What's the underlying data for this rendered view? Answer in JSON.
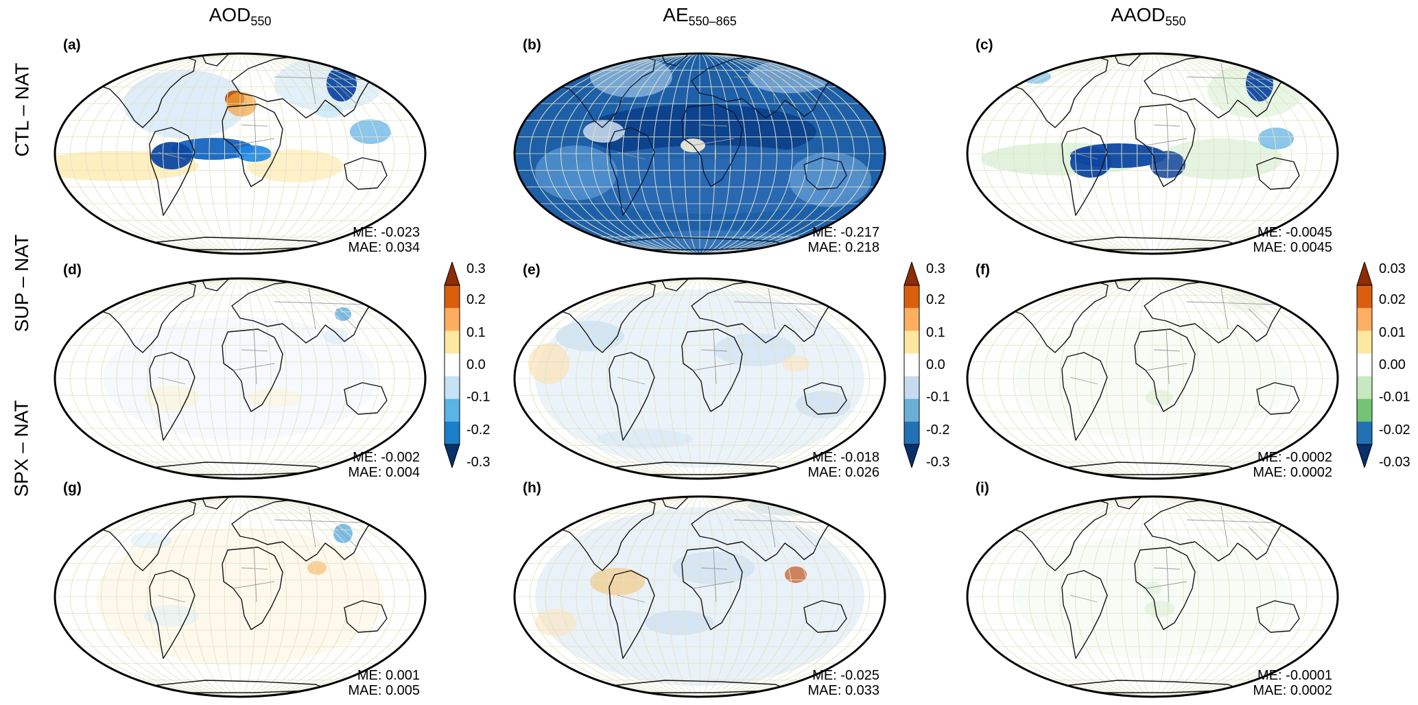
{
  "columns": [
    {
      "main": "AOD",
      "sub": "550"
    },
    {
      "main": "AE",
      "sub": "550–865"
    },
    {
      "main": "AAOD",
      "sub": "550"
    }
  ],
  "rows": [
    "CTL – NAT",
    "SUP – NAT",
    "SPX – NAT"
  ],
  "panels": [
    {
      "label": "(a)",
      "me": "ME: -0.023",
      "mae": "MAE: 0.034"
    },
    {
      "label": "(b)",
      "me": "ME: -0.217",
      "mae": "MAE: 0.218"
    },
    {
      "label": "(c)",
      "me": "ME: -0.0045",
      "mae": "MAE: 0.0045"
    },
    {
      "label": "(d)",
      "me": "ME: -0.002",
      "mae": "MAE: 0.004"
    },
    {
      "label": "(e)",
      "me": "ME: -0.018",
      "mae": "MAE: 0.026"
    },
    {
      "label": "(f)",
      "me": "ME: -0.0002",
      "mae": "MAE: 0.0002"
    },
    {
      "label": "(g)",
      "me": "ME: 0.001",
      "mae": "MAE: 0.005"
    },
    {
      "label": "(h)",
      "me": "ME: -0.025",
      "mae": "MAE: 0.033"
    },
    {
      "label": "(i)",
      "me": "ME: -0.0001",
      "mae": "MAE: 0.0002"
    }
  ],
  "colorbars": [
    {
      "ticks": [
        "0.3",
        "0.2",
        "0.1",
        "0.0",
        "-0.1",
        "-0.2",
        "-0.3"
      ],
      "colors": [
        "#8c2d04",
        "#d95f0e",
        "#fdae61",
        "#fee8a0",
        "#ffffff",
        "#c6e2f5",
        "#5ab4e5",
        "#1a7fc9",
        "#08306b"
      ]
    },
    {
      "ticks": [
        "0.3",
        "0.2",
        "0.1",
        "0.0",
        "-0.1",
        "-0.2",
        "-0.3"
      ],
      "colors": [
        "#8c2d04",
        "#d95f0e",
        "#fdae61",
        "#fee8a0",
        "#ffffff",
        "#c6dbef",
        "#6baed6",
        "#2171b5",
        "#08306b"
      ]
    },
    {
      "ticks": [
        "0.03",
        "0.02",
        "0.01",
        "0.00",
        "-0.01",
        "-0.02",
        "-0.03"
      ],
      "colors": [
        "#8c2d04",
        "#d95f0e",
        "#fdae61",
        "#fee8a0",
        "#ffffff",
        "#c7e9c0",
        "#74c476",
        "#2171b5",
        "#08306b"
      ]
    }
  ]
}
